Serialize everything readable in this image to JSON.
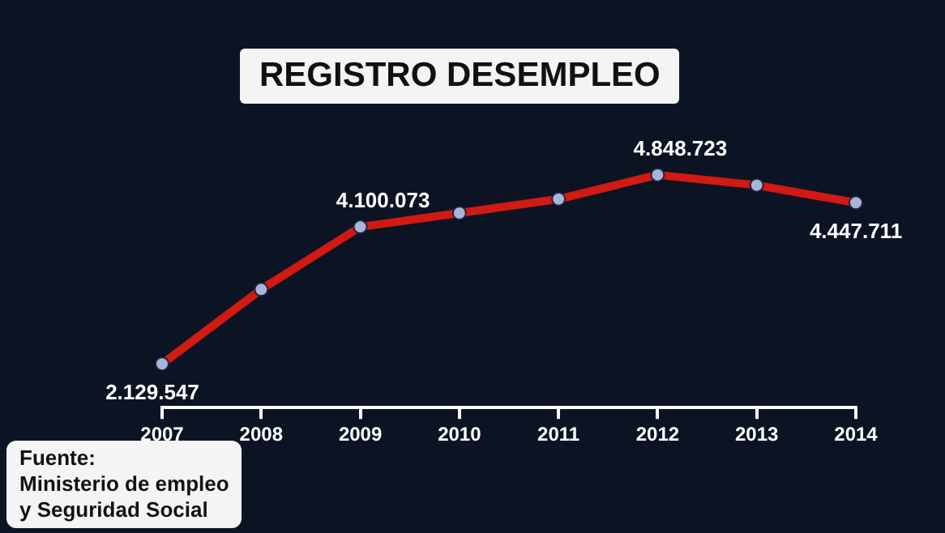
{
  "chart_data": {
    "type": "line",
    "title": "REGISTRO DESEMPLEO",
    "categories": [
      "2007",
      "2008",
      "2009",
      "2010",
      "2011",
      "2012",
      "2013",
      "2014"
    ],
    "series": [
      {
        "color": "#d01a12",
        "values": [
          2129547,
          3200000,
          4100073,
          4300000,
          4500000,
          4848723,
          4700000,
          4447711
        ],
        "value_labels": [
          "2.129.547",
          null,
          "4.100.073",
          null,
          null,
          "4.848.723",
          null,
          "4.447.711"
        ]
      }
    ],
    "annotations": [
      "Fuente:\nMinisterio de empleo\ny Seguridad Social"
    ],
    "marker": "circle",
    "line_style": "solid",
    "grid": false,
    "legend": false
  }
}
